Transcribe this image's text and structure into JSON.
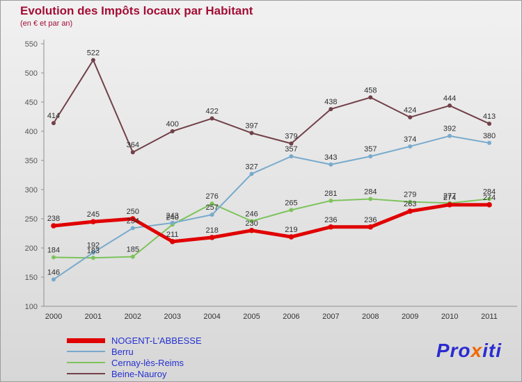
{
  "header": {
    "title": "Evolution des Impôts locaux par Habitant",
    "subtitle": "(en € et par an)"
  },
  "palette": {
    "title_color": "#a30d35",
    "legend_text_color": "#2430cf",
    "axis_color": "#8f8f8f",
    "data_label_color": "#2e2e2e",
    "background": "#e4e4e4"
  },
  "chart_data": {
    "type": "line",
    "title": "Evolution des Impôts locaux par Habitant",
    "subtitle": "(en € et par an)",
    "x": [
      "2000",
      "2001",
      "2002",
      "2003",
      "2004",
      "2005",
      "2006",
      "2007",
      "2008",
      "2009",
      "2010",
      "2011"
    ],
    "ylim": [
      100,
      550
    ],
    "yticks": [
      100,
      150,
      200,
      250,
      300,
      350,
      400,
      450,
      500,
      550
    ],
    "grid": false,
    "legend_position": "bottom-left",
    "series": [
      {
        "name": "NOGENT-L'ABBESSE",
        "color": "#e00000",
        "width": 5,
        "values": [
          238,
          245,
          250,
          211,
          218,
          230,
          219,
          236,
          236,
          263,
          274,
          274
        ]
      },
      {
        "name": "Berru",
        "color": "#78aacc",
        "width": 2,
        "values": [
          146,
          192,
          234,
          243,
          257,
          327,
          357,
          343,
          357,
          374,
          392,
          380
        ]
      },
      {
        "name": "Cernay-lès-Reims",
        "color": "#7dc35b",
        "width": 2,
        "values": [
          184,
          183,
          185,
          240,
          276,
          246,
          265,
          281,
          284,
          279,
          277,
          284
        ]
      },
      {
        "name": "Beine-Nauroy",
        "color": "#714048",
        "width": 2,
        "values": [
          414,
          522,
          364,
          400,
          422,
          397,
          379,
          438,
          458,
          424,
          444,
          413
        ]
      }
    ]
  },
  "brand": {
    "part_pro": "Pro",
    "part_x": "x",
    "part_iti": "iti",
    "blue": "#2b2bd0",
    "orange": "#f06800"
  }
}
